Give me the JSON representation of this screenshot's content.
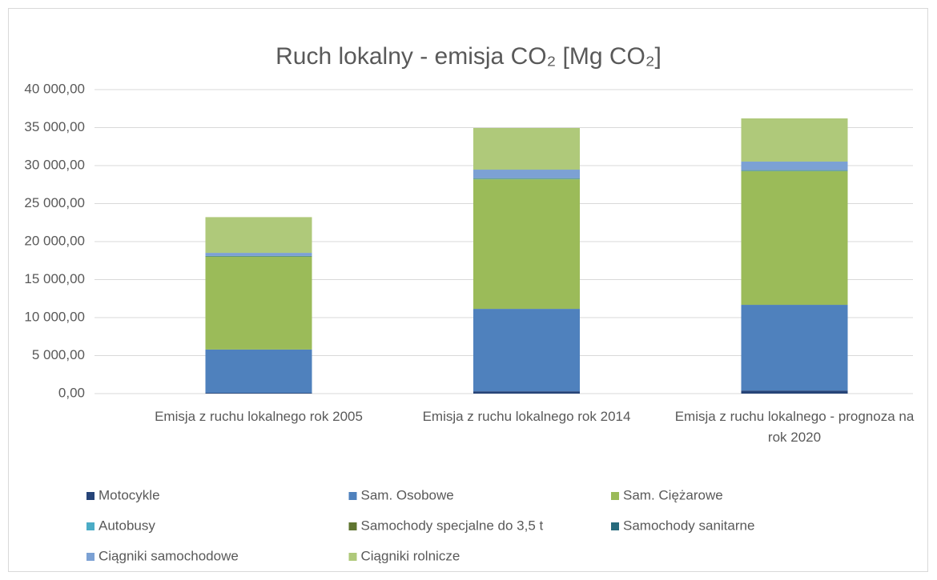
{
  "chart_data": {
    "type": "stacked_bar",
    "title": "Ruch lokalny - emisja CO₂ [Mg CO₂]",
    "categories": [
      "Emisja z ruchu lokalnego rok 2005",
      "Emisja z ruchu lokalnego rok 2014",
      "Emisja z ruchu lokalnego - prognoza na rok 2020"
    ],
    "series": [
      {
        "name": "Motocykle",
        "color": "#264478",
        "values": [
          100,
          300,
          400
        ]
      },
      {
        "name": "Sam. Osobowe",
        "color": "#4f81bd",
        "values": [
          5700,
          10850,
          11280
        ]
      },
      {
        "name": "Sam. Ciężarowe",
        "color": "#9bbb59",
        "values": [
          12200,
          17050,
          17580
        ]
      },
      {
        "name": "Autobusy",
        "color": "#4bacc6",
        "values": [
          50,
          80,
          80
        ]
      },
      {
        "name": "Samochody specjalne do 3,5 t",
        "color": "#5f7530",
        "values": [
          50,
          50,
          50
        ]
      },
      {
        "name": "Samochody sanitarne",
        "color": "#276a7c",
        "values": [
          20,
          20,
          20
        ]
      },
      {
        "name": "Ciągniki samochodowe",
        "color": "#7ca1d4",
        "values": [
          400,
          1120,
          1120
        ]
      },
      {
        "name": "Ciągniki rolnicze",
        "color": "#afc97a",
        "values": [
          4700,
          5480,
          5680
        ]
      }
    ],
    "ylim": [
      0,
      40000
    ],
    "yticks": [
      {
        "value": 0,
        "label": "0,00"
      },
      {
        "value": 5000,
        "label": "5 000,00"
      },
      {
        "value": 10000,
        "label": "10 000,00"
      },
      {
        "value": 15000,
        "label": "15 000,00"
      },
      {
        "value": 20000,
        "label": "20 000,00"
      },
      {
        "value": 25000,
        "label": "25 000,00"
      },
      {
        "value": 30000,
        "label": "30 000,00"
      },
      {
        "value": 35000,
        "label": "35 000,00"
      },
      {
        "value": 40000,
        "label": "40 000,00"
      }
    ],
    "grid": true,
    "legend": "bottom"
  }
}
